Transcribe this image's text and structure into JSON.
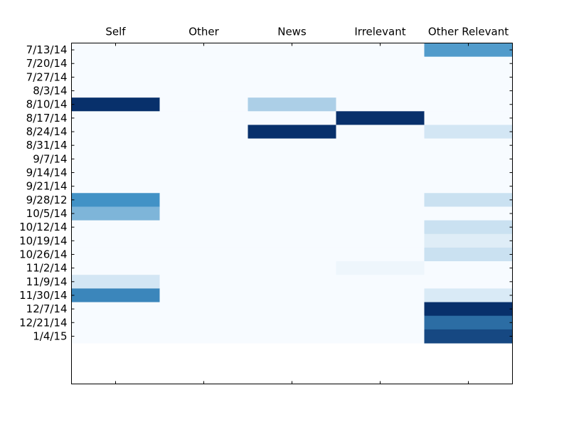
{
  "chart_data": {
    "type": "heatmap",
    "title": "",
    "xlabel": "",
    "ylabel": "",
    "columns": [
      "Self",
      "Other",
      "News",
      "Irrelevant",
      "Other Relevant"
    ],
    "rows": [
      "7/13/14",
      "7/20/14",
      "7/27/14",
      "8/3/14",
      "8/10/14",
      "8/17/14",
      "8/24/14",
      "8/31/14",
      "9/7/14",
      "9/14/14",
      "9/21/14",
      "9/28/12",
      "10/5/14",
      "10/12/14",
      "10/19/14",
      "10/26/14",
      "11/2/14",
      "11/9/14",
      "11/30/14",
      "12/7/14",
      "12/21/14",
      "1/4/15"
    ],
    "values": [
      [
        0,
        0,
        0,
        0,
        0.55
      ],
      [
        0,
        0,
        0,
        0,
        0
      ],
      [
        0,
        0,
        0,
        0,
        0
      ],
      [
        0,
        0,
        0,
        0,
        0
      ],
      [
        1,
        0,
        0.25,
        0,
        0
      ],
      [
        0,
        0,
        0,
        1,
        0
      ],
      [
        0,
        0,
        1,
        0,
        0.12
      ],
      [
        0,
        0,
        0,
        0,
        0
      ],
      [
        0,
        0,
        0,
        0,
        0
      ],
      [
        0,
        0,
        0,
        0,
        0
      ],
      [
        0,
        0,
        0,
        0,
        0
      ],
      [
        0.6,
        0,
        0,
        0,
        0.15
      ],
      [
        0.4,
        0,
        0,
        0,
        0
      ],
      [
        0,
        0,
        0,
        0,
        0.15
      ],
      [
        0,
        0,
        0,
        0,
        0.08
      ],
      [
        0,
        0,
        0,
        0,
        0.15
      ],
      [
        0,
        0,
        0,
        0.03,
        0
      ],
      [
        0.12,
        0,
        0,
        0,
        0
      ],
      [
        0.65,
        0,
        0,
        0,
        0.1
      ],
      [
        0,
        0,
        0,
        0,
        1
      ],
      [
        0,
        0,
        0,
        0,
        0.75
      ],
      [
        0,
        0,
        0,
        0,
        0.9
      ]
    ],
    "row_extent": [
      0,
      25
    ],
    "colormap": "Blues",
    "color_low": "#f7fbff",
    "color_high": "#08306b",
    "frame_color": "#000000",
    "grid": false,
    "legend": "none",
    "x_axis_position": "top"
  }
}
